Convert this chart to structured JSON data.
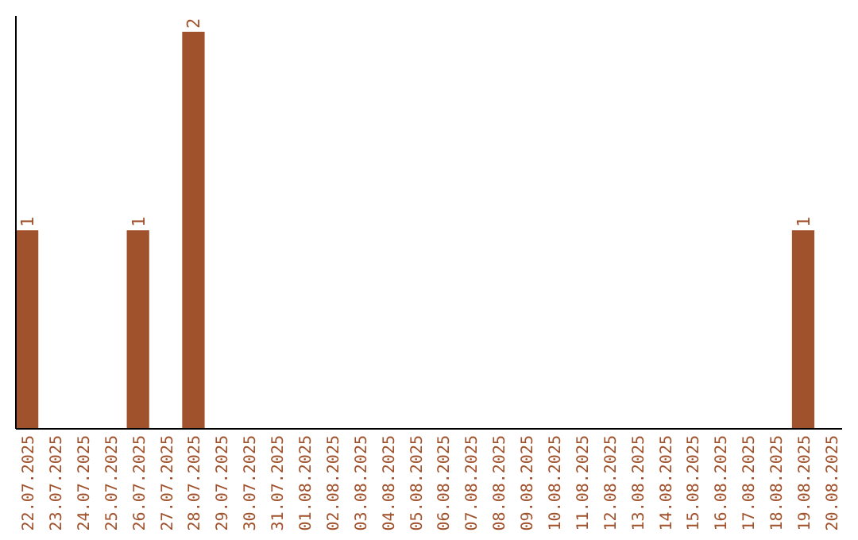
{
  "chart_data": {
    "type": "bar",
    "categories": [
      "22.07.2025",
      "23.07.2025",
      "24.07.2025",
      "25.07.2025",
      "26.07.2025",
      "27.07.2025",
      "28.07.2025",
      "29.07.2025",
      "30.07.2025",
      "31.07.2025",
      "01.08.2025",
      "02.08.2025",
      "03.08.2025",
      "04.08.2025",
      "05.08.2025",
      "06.08.2025",
      "07.08.2025",
      "08.08.2025",
      "09.08.2025",
      "10.08.2025",
      "11.08.2025",
      "12.08.2025",
      "13.08.2025",
      "14.08.2025",
      "15.08.2025",
      "16.08.2025",
      "17.08.2025",
      "18.08.2025",
      "19.08.2025",
      "20.08.2025"
    ],
    "values": [
      1,
      0,
      0,
      0,
      1,
      0,
      2,
      0,
      0,
      0,
      0,
      0,
      0,
      0,
      0,
      0,
      0,
      0,
      0,
      0,
      0,
      0,
      0,
      0,
      0,
      0,
      0,
      0,
      1,
      0
    ],
    "value_labels": [
      "1",
      null,
      null,
      null,
      "1",
      null,
      "2",
      null,
      null,
      null,
      null,
      null,
      null,
      null,
      null,
      null,
      null,
      null,
      null,
      null,
      null,
      null,
      null,
      null,
      null,
      null,
      null,
      null,
      "1",
      null
    ],
    "color": "#a0522d",
    "ylim": [
      0,
      2.08
    ],
    "tick_labels": "x"
  }
}
